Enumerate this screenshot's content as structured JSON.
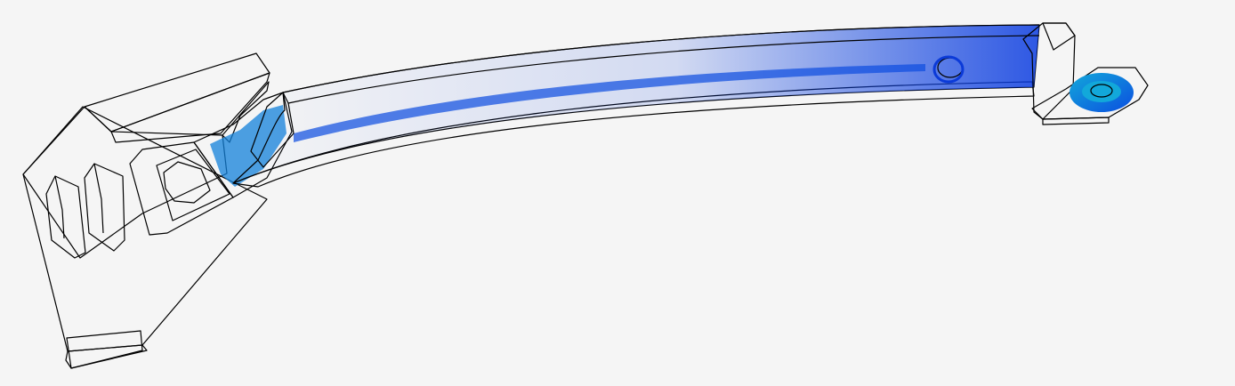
{
  "viewport": {
    "background": "#f5f5f5",
    "model": "curved-beam-with-mount-and-bracket"
  },
  "colormap": {
    "low": "#0a1ee6",
    "low_mid": "#0b6be0",
    "mid_low": "#12b0d6",
    "mid": "#19d2b4",
    "mid_high": "#5ad24a",
    "high_mid": "#c8d228",
    "high": "#f0a01e",
    "peak": "#e8641e"
  },
  "parts": [
    {
      "name": "base-mount",
      "fill": "#0a1ee6"
    },
    {
      "name": "beam",
      "fill": "#12b0d6"
    },
    {
      "name": "end-bracket",
      "fill": "#0b52dc"
    }
  ]
}
